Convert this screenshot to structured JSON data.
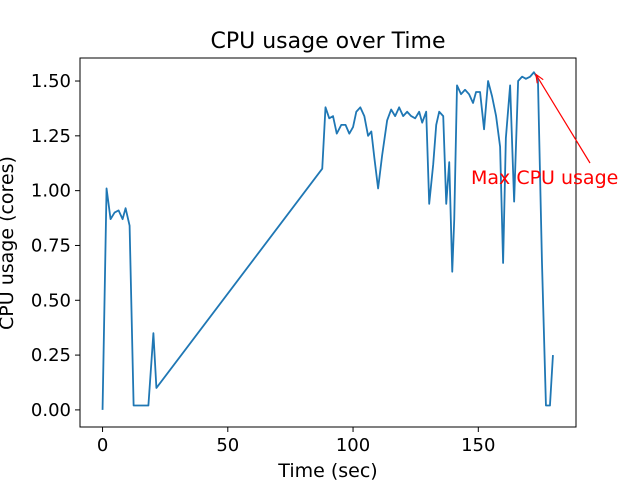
{
  "chart_data": {
    "type": "line",
    "title": "CPU usage over Time",
    "x_label": "Time (sec)",
    "y_label": "CPU usage (cores)",
    "color": "#1f77b4",
    "x": [
      0,
      1.6,
      3.2,
      4.8,
      6.4,
      8,
      9.2,
      10.8,
      12.4,
      18.3,
      20.3,
      21.5,
      87.7,
      89,
      90.5,
      92,
      93.5,
      95.3,
      97,
      98.5,
      100,
      101.3,
      102.9,
      104.5,
      106,
      107.3,
      108.5,
      110,
      111.6,
      113.6,
      115.2,
      116.8,
      118.4,
      120,
      121.6,
      123.2,
      124.8,
      126.4,
      127.6,
      129.2,
      130.4,
      132,
      133.2,
      134.4,
      136,
      137.2,
      138.4,
      139.6,
      140.4,
      141.5,
      143.1,
      144.7,
      146.3,
      147.9,
      149.1,
      150.7,
      152.3,
      153.9,
      155.5,
      157.1,
      158.7,
      159.9,
      161,
      162.7,
      164.3,
      165.9,
      167.5,
      169,
      170.7,
      172.2,
      173.8,
      175.4,
      177,
      178.6,
      179.8
    ],
    "values": [
      0,
      1.01,
      0.87,
      0.9,
      0.91,
      0.87,
      0.92,
      0.84,
      0.02,
      0.02,
      0.35,
      0.1,
      1.1,
      1.38,
      1.33,
      1.34,
      1.26,
      1.3,
      1.3,
      1.26,
      1.29,
      1.36,
      1.38,
      1.34,
      1.25,
      1.27,
      1.15,
      1.01,
      1.16,
      1.32,
      1.37,
      1.34,
      1.38,
      1.34,
      1.36,
      1.34,
      1.33,
      1.36,
      1.31,
      1.36,
      0.94,
      1.12,
      1.3,
      1.36,
      1.34,
      0.94,
      1.13,
      0.63,
      0.87,
      1.48,
      1.44,
      1.46,
      1.44,
      1.4,
      1.45,
      1.45,
      1.28,
      1.5,
      1.43,
      1.34,
      1.2,
      0.67,
      1.24,
      1.48,
      0.95,
      1.5,
      1.52,
      1.51,
      1.52,
      1.54,
      1.51,
      0.68,
      0.02,
      0.02,
      0.25
    ],
    "xlim": [
      -9,
      189
    ],
    "ylim": [
      -0.078,
      1.605
    ],
    "xticks": [
      0,
      50,
      100,
      150
    ],
    "yticks": [
      {
        "value": 0,
        "label": "0.00"
      },
      {
        "value": 0.25,
        "label": "0.25"
      },
      {
        "value": 0.5,
        "label": "0.50"
      },
      {
        "value": 0.75,
        "label": "0.75"
      },
      {
        "value": 1,
        "label": "1.00"
      },
      {
        "value": 1.25,
        "label": "1.25"
      },
      {
        "value": 1.5,
        "label": "1.50"
      }
    ],
    "annotation": {
      "text": "Max CPU usage",
      "x": 173,
      "y": 1.53,
      "color": "red"
    }
  }
}
